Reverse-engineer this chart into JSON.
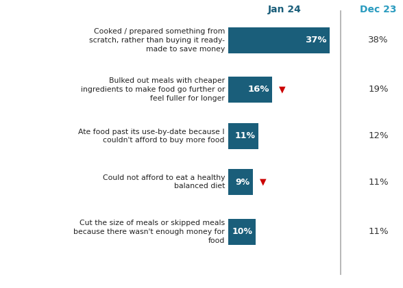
{
  "categories": [
    "Cooked / prepared something from\nscratch, rather than buying it ready-\nmade to save money",
    "Bulked out meals with cheaper\ningredients to make food go further or\nfeel fuller for longer",
    "Ate food past its use-by-date because I\ncouldn't afford to buy more food",
    "Could not afford to eat a healthy\nbalanced diet",
    "Cut the size of meals or skipped meals\nbecause there wasn't enough money for\nfood"
  ],
  "jan24_values": [
    37,
    16,
    11,
    9,
    10
  ],
  "dec23_values": [
    "38%",
    "19%",
    "12%",
    "11%",
    "11%"
  ],
  "down_arrows": [
    false,
    true,
    false,
    true,
    false
  ],
  "bar_color": "#1a5e7a",
  "arrow_color": "#cc0000",
  "jan24_label": "Jan 24",
  "dec23_label": "Dec 23",
  "jan24_label_color": "#1a5e7a",
  "dec23_label_color": "#2a9bbf",
  "text_color_bar": "#ffffff",
  "text_color_dec": "#333333",
  "separator_color": "#aaaaaa",
  "background_color": "#ffffff",
  "bar_max": 40,
  "fig_width": 5.88,
  "fig_height": 4.21,
  "dpi": 100
}
